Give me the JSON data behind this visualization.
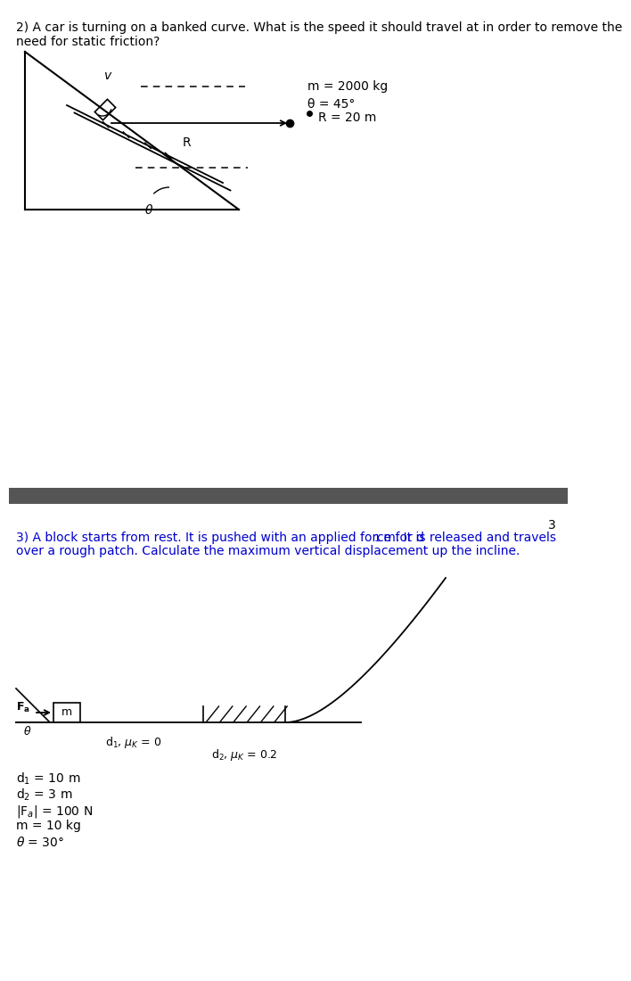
{
  "bg_color": "#ffffff",
  "divider_color": "#555555",
  "text_color": "#000000",
  "blue_text_color": "#0000cd",
  "page_number": "3",
  "fig_width": 6.27,
  "fig_height": 10.8,
  "q2_line1": "2) A car is turning on a banked curve. What is the speed it should travel at in order to remove the",
  "q2_line2": "need for static friction?",
  "q2_param1": "m = 2000 kg",
  "q2_param2": "θ = 45°",
  "q2_param3": "R = 20 m",
  "q3_line1a": "3) A block starts from rest. It is pushed with an applied force for d",
  "q3_line1b": " m. It is released and travels",
  "q3_line2": "over a rough patch. Calculate the maximum vertical displacement up the incline.",
  "q3_p1": "d₁ = 10 m",
  "q3_p2": "d₂ = 3 m",
  "q3_p3": "|Fₐ| = 100 N",
  "q3_p4": "m = 10 kg",
  "q3_p5": "θ = 30°"
}
